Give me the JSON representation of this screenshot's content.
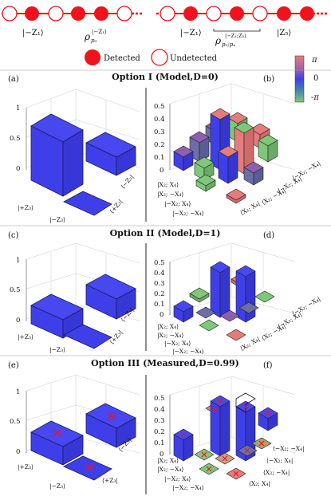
{
  "diagram": {
    "left_chain": {
      "ket": "|−Z₁⟩",
      "rho_base": "ρ",
      "rho_sub": "p₃",
      "rho_sup": "|−Z₁⟩"
    },
    "right_chain": {
      "ket_left": "|−Z₁⟩",
      "ket_right": "|Z₅⟩",
      "rho_base": "ρ",
      "rho_sub": "p₂;p₄",
      "rho_sup": "|−Z₁;Z₅⟩"
    },
    "legend": {
      "detected": "Detected",
      "undetected": "Undetected"
    },
    "colorbar": {
      "top": "π",
      "mid": "0",
      "bottom": "-π"
    },
    "colors": {
      "red": "#f0131e",
      "blue": "#3f3fea",
      "green": "#7fc879",
      "pink": "#e57c7c",
      "slate": "#6c6fa5"
    }
  },
  "rows": [
    {
      "title": "Option I (Model,D=0)",
      "left_label": "(a)",
      "right_label": "(b)"
    },
    {
      "title": "Option II (Model,D=1)",
      "left_label": "(c)",
      "right_label": "(d)"
    },
    {
      "title": "Option III (Measured,D=0.99)",
      "left_label": "(e)",
      "right_label": "(f)"
    }
  ],
  "axes": {
    "left_ticks": [
      "0",
      "0.5",
      "1"
    ],
    "right_ticks": [
      "0",
      "0.1",
      "0.2",
      "0.3",
      "0.4",
      "0.5"
    ],
    "left_kets": {
      "plus_z3": "|+Z₃⟩",
      "minus_z3": "|−Z₃⟩",
      "bra_plus_z3": "⟨+Z₃|",
      "bra_minus_z3": "⟨−Z₃|"
    },
    "right_kets": {
      "k1": "|X₂; X₄⟩",
      "k2": "|X₂; −X₄⟩",
      "k3": "|−X₂; X₄⟩",
      "k4": "|−X₂; −X₄⟩",
      "b1": "⟨X₂; X₄|",
      "b2": "⟨X₂; −X₄|",
      "b3": "⟨−X₂; X₄|",
      "b4": "⟨−X₂; −X₄|"
    }
  }
}
